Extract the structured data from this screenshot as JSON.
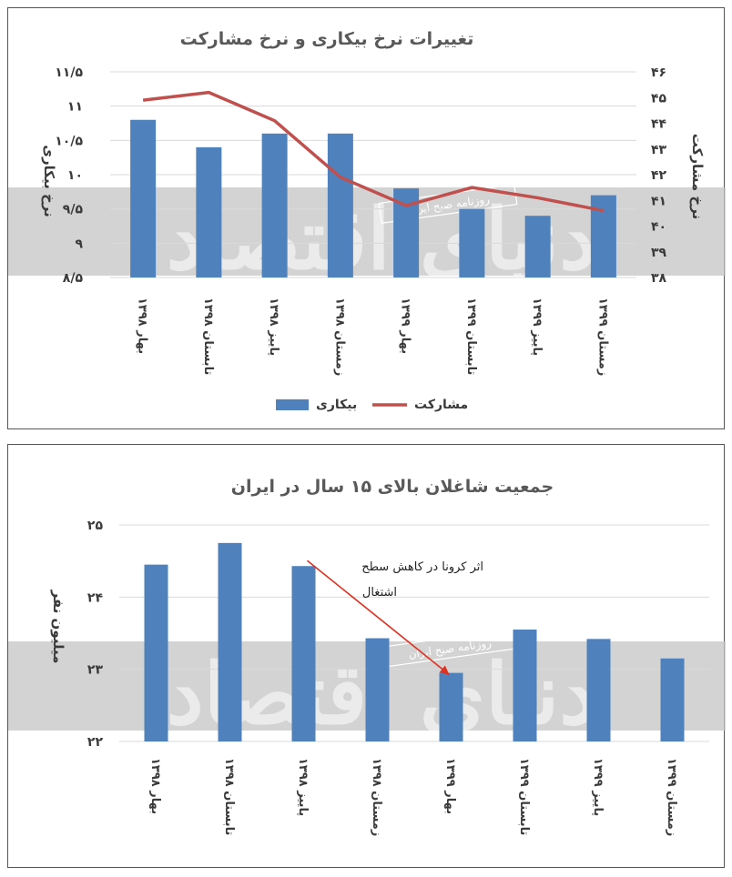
{
  "chart_data": [
    {
      "type": "bar+line",
      "title": "تغییرات نرخ بیکاری و  نرخ مشارکت",
      "categories": [
        "بهار ۱۳۹۸",
        "تابستان ۱۳۹۸",
        "پاییز ۱۳۹۸",
        "زمستان ۱۳۹۸",
        "بهار ۱۳۹۹",
        "تابستان ۱۳۹۹",
        "پاییز ۱۳۹۹",
        "زمستان ۱۳۹۹"
      ],
      "series": [
        {
          "name": "بیکاری",
          "kind": "bar",
          "axis": "left",
          "color": "#4f81bd",
          "values": [
            10.8,
            10.4,
            10.6,
            10.6,
            9.8,
            9.5,
            9.4,
            9.7
          ]
        },
        {
          "name": "مشارکت",
          "kind": "line",
          "axis": "right",
          "color": "#c0504d",
          "values": [
            44.9,
            45.2,
            44.1,
            41.9,
            40.8,
            41.5,
            41.1,
            40.6
          ]
        }
      ],
      "ylabel": "نرخ بیکاری",
      "y2label": "نرخ مشارکت",
      "ylim": [
        8.5,
        11.5
      ],
      "y2lim": [
        38,
        46
      ],
      "yticks": [
        "۸/۵",
        "۹",
        "۹/۵",
        "۱۰",
        "۱۰/۵",
        "۱۱",
        "۱۱/۵"
      ],
      "y2ticks": [
        "۳۸",
        "۳۹",
        "۴۰",
        "۴۱",
        "۴۲",
        "۴۳",
        "۴۴",
        "۴۵",
        "۴۶"
      ],
      "legend": {
        "position": "bottom",
        "items": [
          {
            "label": "بیکاری",
            "kind": "bar",
            "color": "#4f81bd"
          },
          {
            "label": "مشارکت",
            "kind": "line",
            "color": "#c0504d"
          }
        ]
      },
      "grid": true
    },
    {
      "type": "bar",
      "title": "جمعیت شاغلان بالای ۱۵ سال در ایران",
      "categories": [
        "بهار ۱۳۹۸",
        "تابستان ۱۳۹۸",
        "پاییز ۱۳۹۸",
        "زمستان ۱۳۹۸",
        "بهار ۱۳۹۹",
        "تابستان ۱۳۹۹",
        "پاییز ۱۳۹۹",
        "زمستان ۱۳۹۹"
      ],
      "series": [
        {
          "kind": "bar",
          "color": "#4f81bd",
          "values": [
            24.45,
            24.75,
            24.43,
            23.43,
            22.95,
            23.55,
            23.42,
            23.15
          ]
        }
      ],
      "ylabel": "میلیون نفر",
      "ylim": [
        22,
        25
      ],
      "yticks": [
        "۲۲",
        "۲۳",
        "۲۴",
        "۲۵"
      ],
      "annotation": {
        "text_line1": "اثر کرونا در کاهش سطح",
        "text_line2": "اشتغال",
        "arrow_from": "پاییز ۱۳۹۸",
        "arrow_to": "بهار ۱۳۹۹",
        "color": "#e03020"
      },
      "grid": true
    }
  ],
  "watermark": {
    "logo_text": "دنیای اقتصاد",
    "stamp_text": "روزنامه صبح ایران"
  }
}
